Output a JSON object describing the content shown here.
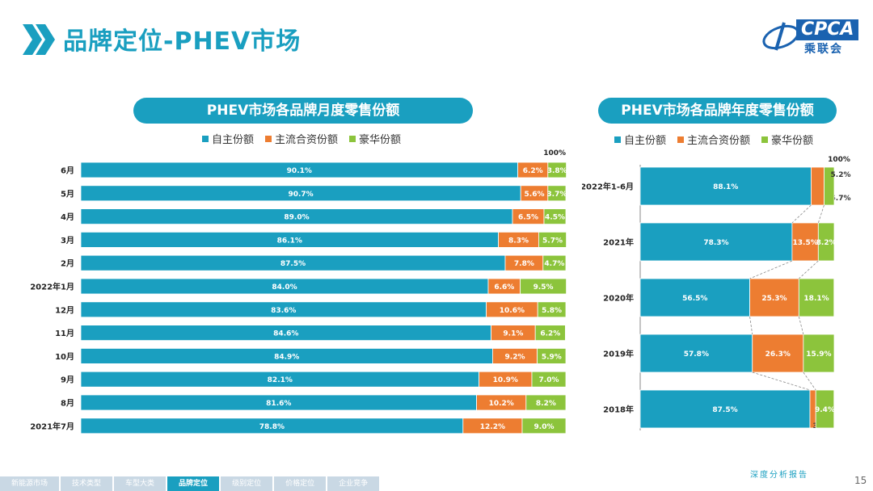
{
  "header": {
    "title": "品牌定位-PHEV市场"
  },
  "logo": {
    "text": "CPCA",
    "sub": "乘联会"
  },
  "colors": {
    "self": "#1a9fc0",
    "jv": "#ed7d31",
    "lux": "#8cc43c",
    "accent": "#1a9fc0"
  },
  "legend": {
    "self": "自主份额",
    "jv": "主流合资份额",
    "lux": "豪华份额"
  },
  "footer": {
    "nav": [
      "新能源市场",
      "技术类型",
      "车型大类",
      "品牌定位",
      "级别定位",
      "价格定位",
      "企业竞争"
    ],
    "active_index": 3,
    "report": "深度分析报告",
    "page": "15"
  },
  "chart_data": [
    {
      "type": "bar",
      "orientation": "horizontal-stacked-100",
      "title": "PHEV市场各品牌月度零售份额",
      "total_label": "100%",
      "categories": [
        "6月",
        "5月",
        "4月",
        "3月",
        "2月",
        "2022年1月",
        "12月",
        "11月",
        "10月",
        "9月",
        "8月",
        "2021年7月"
      ],
      "series": [
        {
          "name": "自主份额",
          "values": [
            90.1,
            90.7,
            89.0,
            86.1,
            87.5,
            84.0,
            83.6,
            84.6,
            84.9,
            82.1,
            81.6,
            78.8
          ]
        },
        {
          "name": "主流合资份额",
          "values": [
            6.2,
            5.6,
            6.5,
            8.3,
            7.8,
            6.6,
            10.6,
            9.1,
            9.2,
            10.9,
            10.2,
            12.2
          ]
        },
        {
          "name": "豪华份额",
          "values": [
            3.8,
            3.7,
            4.5,
            5.7,
            4.7,
            9.5,
            5.8,
            6.2,
            5.9,
            7.0,
            8.2,
            9.0
          ]
        }
      ],
      "xlim": [
        0,
        100
      ]
    },
    {
      "type": "bar",
      "orientation": "horizontal-stacked-100",
      "title": "PHEV市场各品牌年度零售份额",
      "total_label": "100%",
      "categories": [
        "2022年1-6月",
        "2021年",
        "2020年",
        "2019年",
        "2018年"
      ],
      "series": [
        {
          "name": "自主份额",
          "values": [
            88.1,
            78.3,
            56.5,
            57.8,
            87.5
          ]
        },
        {
          "name": "主流合资份额",
          "values": [
            6.7,
            13.5,
            25.3,
            26.3,
            3.0
          ]
        },
        {
          "name": "豪华份额",
          "values": [
            5.2,
            8.2,
            18.1,
            15.9,
            9.4
          ]
        }
      ],
      "xlim": [
        0,
        100
      ]
    }
  ]
}
